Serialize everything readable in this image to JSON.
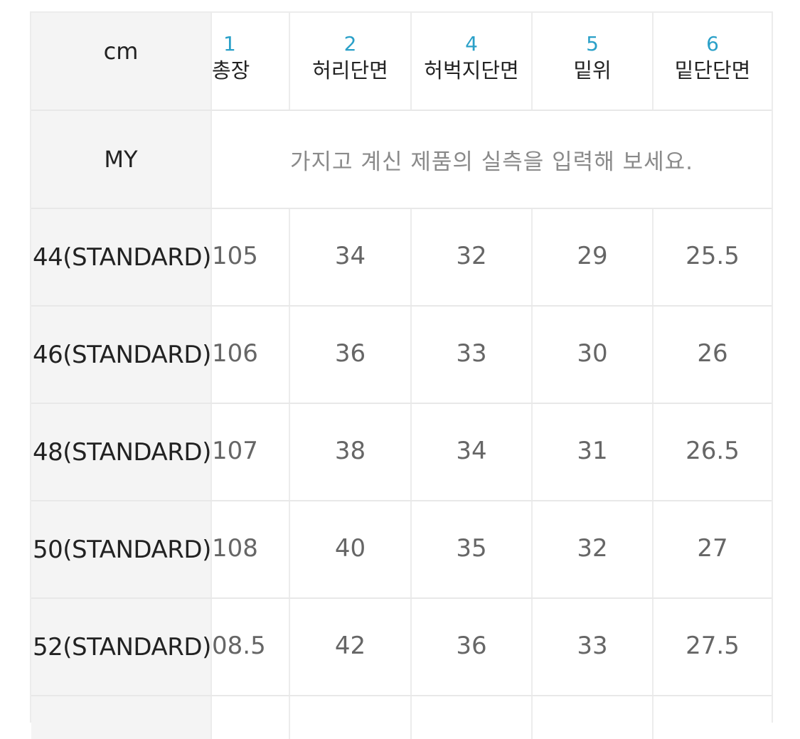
{
  "table": {
    "corner_label": "cm",
    "columns": [
      {
        "num": "1",
        "label": "총장"
      },
      {
        "num": "2",
        "label": "허리단면"
      },
      {
        "num": "4",
        "label": "허벅지단면"
      },
      {
        "num": "5",
        "label": "밑위"
      },
      {
        "num": "6",
        "label": "밑단단면"
      }
    ],
    "my_row": {
      "label": "MY",
      "placeholder": "가지고 계신 제품의 실측을 입력해 보세요."
    },
    "rows": [
      {
        "size": "44(STANDARD)",
        "values": [
          "105",
          "34",
          "32",
          "29",
          "25.5"
        ]
      },
      {
        "size": "46(STANDARD)",
        "values": [
          "106",
          "36",
          "33",
          "30",
          "26"
        ]
      },
      {
        "size": "48(STANDARD)",
        "values": [
          "107",
          "38",
          "34",
          "31",
          "26.5"
        ]
      },
      {
        "size": "50(STANDARD)",
        "values": [
          "108",
          "40",
          "35",
          "32",
          "27"
        ]
      },
      {
        "size": "52(STANDARD)",
        "values": [
          "08.5",
          "42",
          "36",
          "33",
          "27.5"
        ]
      }
    ]
  }
}
